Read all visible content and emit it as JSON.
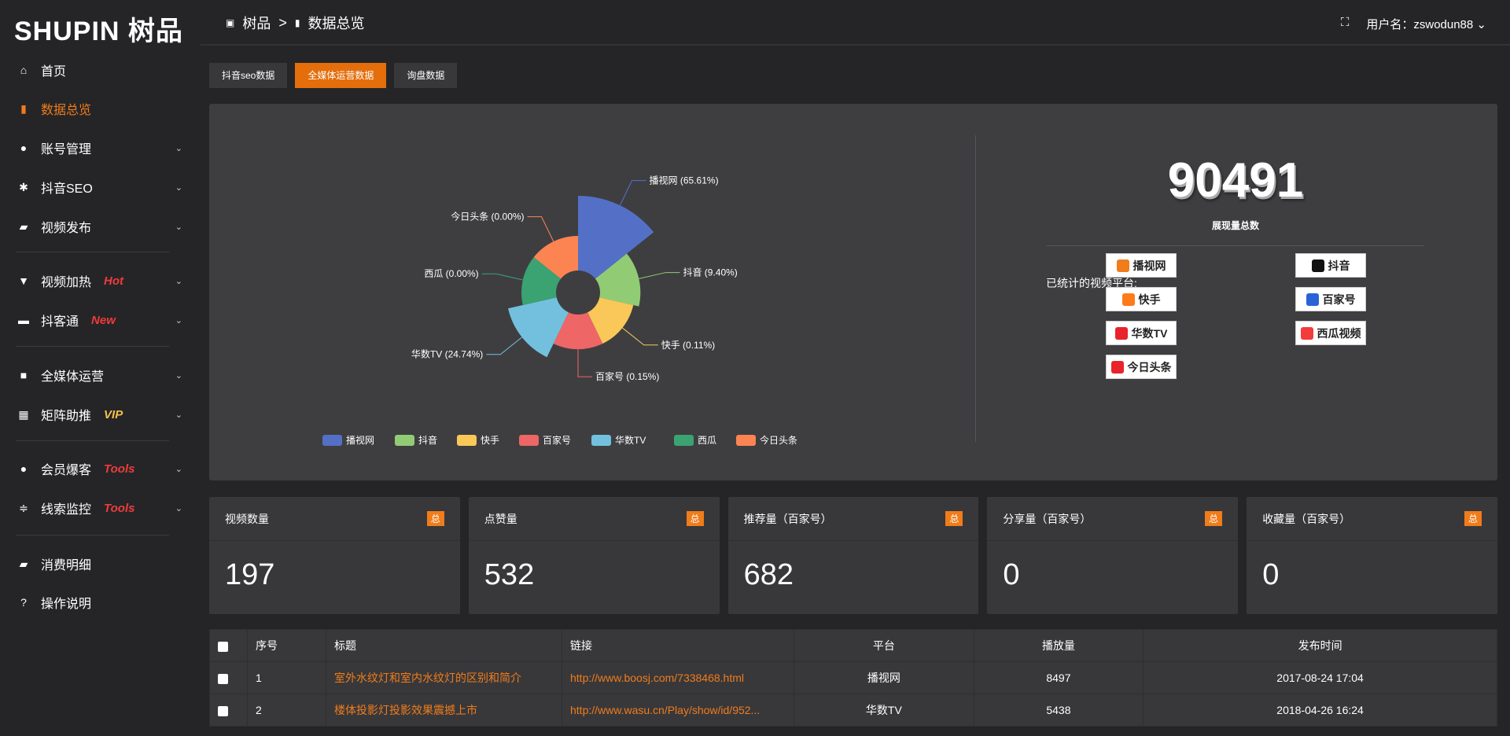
{
  "logo": "SHUPIN 树品",
  "breadcrumb": [
    "树品",
    "数据总览"
  ],
  "user": {
    "label": "用户名：zswodun88"
  },
  "sidebar": {
    "items": [
      {
        "label": "首页",
        "icon": "home-icon",
        "glyph": "⌂"
      },
      {
        "label": "数据总览",
        "icon": "bar-chart-icon",
        "glyph": "▮",
        "active": true
      },
      {
        "label": "账号管理",
        "icon": "user-icon",
        "glyph": "●",
        "chev": true
      },
      {
        "label": "抖音SEO",
        "icon": "gear-icon",
        "glyph": "✱",
        "chev": true
      },
      {
        "label": "视频发布",
        "icon": "camera-icon",
        "glyph": "▰",
        "chev": true
      },
      {
        "label": "视频加热",
        "icon": "heat-icon",
        "glyph": "▼",
        "chev": true,
        "badge": "Hot"
      },
      {
        "label": "抖客通",
        "icon": "chat-icon",
        "glyph": "▬",
        "chev": true,
        "badge": "New"
      },
      {
        "label": "全媒体运营",
        "icon": "monitor-icon",
        "glyph": "■",
        "chev": true
      },
      {
        "label": "矩阵助推",
        "icon": "grid-icon",
        "glyph": "▦",
        "chev": true,
        "badge": "VIP"
      },
      {
        "label": "会员爆客",
        "icon": "member-icon",
        "glyph": "●",
        "chev": true,
        "badge": "Tools"
      },
      {
        "label": "线索监控",
        "icon": "sliders-icon",
        "glyph": "≑",
        "chev": true,
        "badge": "Tools"
      },
      {
        "label": "消费明细",
        "icon": "wallet-icon",
        "glyph": "▰"
      },
      {
        "label": "操作说明",
        "icon": "help-icon",
        "glyph": "?"
      }
    ]
  },
  "tabs": [
    {
      "label": "抖音seo数据"
    },
    {
      "label": "全媒体运营数据",
      "active": true
    },
    {
      "label": "询盘数据"
    }
  ],
  "chart_data": {
    "type": "pie",
    "rose": true,
    "categories": [
      "播视网",
      "抖音",
      "快手",
      "百家号",
      "华数TV",
      "西瓜",
      "今日头条"
    ],
    "values": [
      65.61,
      9.4,
      0.11,
      0.15,
      24.74,
      0.0,
      0.0
    ],
    "labels": [
      "播视网 (65.61%)",
      "抖音 (9.40%)",
      "快手 (0.11%)",
      "百家号 (0.15%)",
      "华数TV (24.74%)",
      "西瓜 (0.00%)",
      "今日头条 (0.00%)"
    ],
    "colors": [
      "#5470c6",
      "#91cc75",
      "#fac858",
      "#ee6666",
      "#73c0de",
      "#3ba272",
      "#fc8452"
    ],
    "legend": "bottom"
  },
  "summary": {
    "total": "90491",
    "total_label": "展现量总数",
    "platforms_title": "已统计的视频平台:",
    "platforms": [
      {
        "name": "播视网",
        "color": "#f07c1a"
      },
      {
        "name": "抖音",
        "color": "#111"
      },
      {
        "name": "快手",
        "color": "#ff7a1a"
      },
      {
        "name": "百家号",
        "color": "#2a62d8"
      },
      {
        "name": "华数TV",
        "color": "#e8232b"
      },
      {
        "name": "西瓜视频",
        "color": "#f33b3b"
      },
      {
        "name": "今日头条",
        "color": "#e8232b"
      }
    ]
  },
  "stats": [
    {
      "label": "视频数量",
      "badge": "总",
      "value": "197"
    },
    {
      "label": "点赞量",
      "badge": "总",
      "value": "532"
    },
    {
      "label": "推荐量（百家号）",
      "badge": "总",
      "value": "682"
    },
    {
      "label": "分享量（百家号）",
      "badge": "总",
      "value": "0"
    },
    {
      "label": "收藏量（百家号）",
      "badge": "总",
      "value": "0"
    }
  ],
  "table": {
    "headers": [
      "序号",
      "标题",
      "链接",
      "平台",
      "播放量",
      "发布时间"
    ],
    "rows": [
      [
        "1",
        "室外水纹灯和室内水纹灯的区别和简介",
        "http://www.boosj.com/7338468.html",
        "播视网",
        "8497",
        "2017-08-24 17:04"
      ],
      [
        "2",
        "楼体投影灯投影效果震撼上市",
        "http://www.wasu.cn/Play/show/id/952...",
        "华数TV",
        "5438",
        "2018-04-26 16:24"
      ]
    ]
  }
}
